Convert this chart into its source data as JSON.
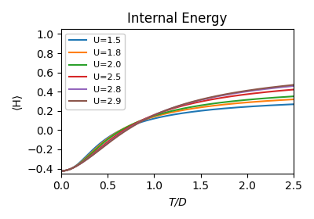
{
  "title": "Internal Energy",
  "xlabel": "T/D",
  "ylabel": "⟨H⟩",
  "xlim": [
    0.0,
    2.5
  ],
  "ylim": [
    -0.45,
    1.05
  ],
  "series": [
    {
      "label": "U=1.5",
      "U": 1.5,
      "color": "#1f77b4"
    },
    {
      "label": "U=1.8",
      "U": 1.8,
      "color": "#ff7f0e"
    },
    {
      "label": "U=2.0",
      "U": 2.0,
      "color": "#2ca02c"
    },
    {
      "label": "U=2.5",
      "U": 2.5,
      "color": "#d62728"
    },
    {
      "label": "U=2.8",
      "U": 2.8,
      "color": "#9467bd"
    },
    {
      "label": "U=2.9",
      "U": 2.9,
      "color": "#8c564b"
    }
  ],
  "xticks": [
    0.0,
    0.5,
    1.0,
    1.5,
    2.0,
    2.5
  ],
  "yticks": [
    -0.4,
    -0.2,
    0.0,
    0.2,
    0.4,
    0.6,
    0.8,
    1.0
  ],
  "legend_loc": "upper left",
  "figsize": [
    4.0,
    2.8
  ],
  "dpi": 100
}
